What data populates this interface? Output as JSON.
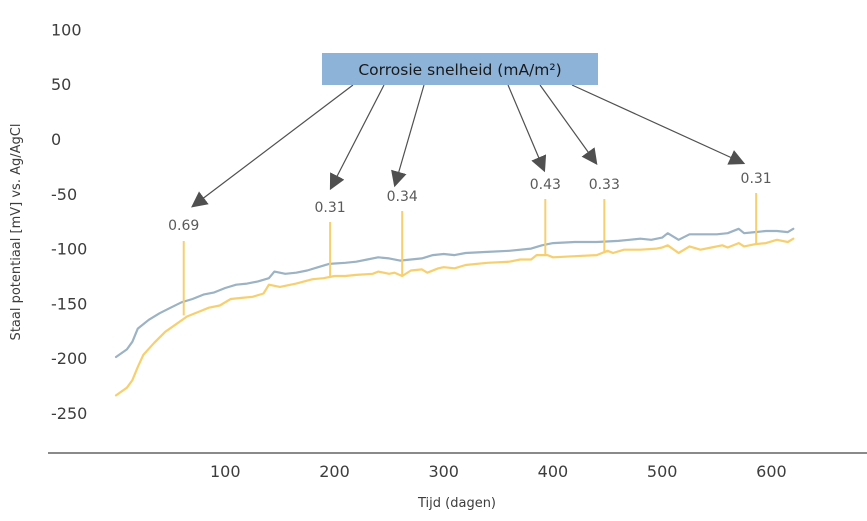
{
  "chart_data": {
    "type": "line",
    "title": "",
    "xlabel": "Tijd (dagen)",
    "ylabel": "Staal potentiaal [mV] vs. Ag/AgCl",
    "xlim": [
      -60,
      680
    ],
    "ylim": [
      -290,
      115
    ],
    "x_ticks": [
      "100",
      "200",
      "300",
      "400",
      "500",
      "600"
    ],
    "y_ticks": [
      "100",
      "50",
      "0",
      "-50",
      "-100",
      "-150",
      "-200",
      "-250"
    ],
    "grid": false,
    "legend": "none",
    "series": [
      {
        "color": "#9bb3c4",
        "points": [
          [
            0,
            -199
          ],
          [
            10,
            -192
          ],
          [
            15,
            -185
          ],
          [
            20,
            -173
          ],
          [
            30,
            -165
          ],
          [
            40,
            -159
          ],
          [
            50,
            -154
          ],
          [
            60,
            -149
          ],
          [
            70,
            -146
          ],
          [
            80,
            -142
          ],
          [
            90,
            -140
          ],
          [
            100,
            -136
          ],
          [
            110,
            -133
          ],
          [
            120,
            -132
          ],
          [
            130,
            -130
          ],
          [
            140,
            -127
          ],
          [
            145,
            -121
          ],
          [
            155,
            -123
          ],
          [
            165,
            -122
          ],
          [
            175,
            -120
          ],
          [
            185,
            -117
          ],
          [
            195,
            -114
          ],
          [
            210,
            -113
          ],
          [
            220,
            -112
          ],
          [
            230,
            -110
          ],
          [
            240,
            -108
          ],
          [
            250,
            -109
          ],
          [
            260,
            -111
          ],
          [
            270,
            -110
          ],
          [
            280,
            -109
          ],
          [
            290,
            -106
          ],
          [
            300,
            -105
          ],
          [
            310,
            -106
          ],
          [
            320,
            -104
          ],
          [
            340,
            -103
          ],
          [
            360,
            -102
          ],
          [
            380,
            -100
          ],
          [
            390,
            -97
          ],
          [
            400,
            -95
          ],
          [
            420,
            -94
          ],
          [
            440,
            -94
          ],
          [
            460,
            -93
          ],
          [
            470,
            -92
          ],
          [
            480,
            -91
          ],
          [
            490,
            -92
          ],
          [
            500,
            -90
          ],
          [
            505,
            -86
          ],
          [
            515,
            -92
          ],
          [
            525,
            -87
          ],
          [
            535,
            -87
          ],
          [
            550,
            -87
          ],
          [
            560,
            -86
          ],
          [
            570,
            -82
          ],
          [
            575,
            -86
          ],
          [
            585,
            -85
          ],
          [
            595,
            -84
          ],
          [
            605,
            -84
          ],
          [
            615,
            -85
          ],
          [
            620,
            -82
          ]
        ]
      },
      {
        "color": "#f7cf6e",
        "points": [
          [
            0,
            -234
          ],
          [
            10,
            -227
          ],
          [
            15,
            -220
          ],
          [
            20,
            -208
          ],
          [
            25,
            -197
          ],
          [
            35,
            -186
          ],
          [
            45,
            -176
          ],
          [
            55,
            -169
          ],
          [
            65,
            -162
          ],
          [
            75,
            -158
          ],
          [
            85,
            -154
          ],
          [
            95,
            -152
          ],
          [
            105,
            -146
          ],
          [
            115,
            -145
          ],
          [
            125,
            -144
          ],
          [
            135,
            -141
          ],
          [
            140,
            -133
          ],
          [
            150,
            -135
          ],
          [
            165,
            -132
          ],
          [
            180,
            -128
          ],
          [
            190,
            -127
          ],
          [
            200,
            -125
          ],
          [
            210,
            -125
          ],
          [
            220,
            -124
          ],
          [
            235,
            -123
          ],
          [
            240,
            -121
          ],
          [
            250,
            -123
          ],
          [
            255,
            -122
          ],
          [
            262,
            -125
          ],
          [
            270,
            -120
          ],
          [
            280,
            -119
          ],
          [
            285,
            -122
          ],
          [
            295,
            -118
          ],
          [
            300,
            -117
          ],
          [
            310,
            -118
          ],
          [
            320,
            -115
          ],
          [
            340,
            -113
          ],
          [
            360,
            -112
          ],
          [
            370,
            -110
          ],
          [
            380,
            -110
          ],
          [
            385,
            -106
          ],
          [
            395,
            -106
          ],
          [
            400,
            -108
          ],
          [
            420,
            -107
          ],
          [
            440,
            -106
          ],
          [
            450,
            -102
          ],
          [
            455,
            -104
          ],
          [
            465,
            -101
          ],
          [
            480,
            -101
          ],
          [
            495,
            -100
          ],
          [
            500,
            -99
          ],
          [
            505,
            -97
          ],
          [
            515,
            -104
          ],
          [
            525,
            -98
          ],
          [
            535,
            -101
          ],
          [
            545,
            -99
          ],
          [
            555,
            -97
          ],
          [
            560,
            -99
          ],
          [
            570,
            -95
          ],
          [
            575,
            -98
          ],
          [
            585,
            -96
          ],
          [
            595,
            -95
          ],
          [
            605,
            -92
          ],
          [
            615,
            -94
          ],
          [
            620,
            -91
          ]
        ]
      }
    ],
    "callout": {
      "text": "Corrosie snelheid (mA/m²)",
      "fill": "#8db3d9"
    },
    "annotations": [
      {
        "label": "0.69",
        "x": 62,
        "y": -161
      },
      {
        "label": "0.31",
        "x": 196,
        "y": -125
      },
      {
        "label": "0.34",
        "x": 262,
        "y": -125
      },
      {
        "label": "0.43",
        "x": 393,
        "y": -106
      },
      {
        "label": "0.33",
        "x": 447,
        "y": -103
      },
      {
        "label": "0.31",
        "x": 586,
        "y": -96
      }
    ],
    "line_color": "#f7cf6e",
    "arrow_color": "#505050",
    "axis_color": "#444444"
  }
}
